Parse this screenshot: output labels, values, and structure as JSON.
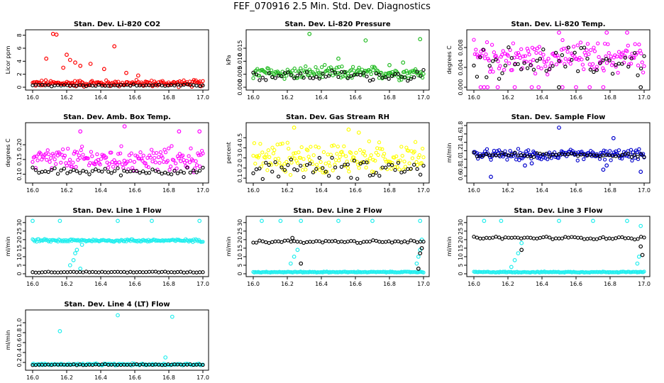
{
  "title": "FEF_070916  2.5 Min. Std. Dev. Diagnostics",
  "colors": {
    "co2": "#ff0000",
    "pressure": "#22bb22",
    "magenta": "#ff00ff",
    "yellow": "#ffff00",
    "blue": "#0000cc",
    "cyan": "#22eeee",
    "ref": "#000000"
  },
  "chart_data": [
    {
      "id": "co2",
      "type": "scatter",
      "title": "Stan. Dev. Li-820 CO2",
      "ylabel": "Licor ppm",
      "x_ticks": [
        "16.0",
        "16.2",
        "16.4",
        "16.6",
        "16.8",
        "17.0"
      ],
      "xlim": [
        16.0,
        17.0
      ],
      "y_ticks": [
        "0",
        "2",
        "4",
        "6",
        "8"
      ],
      "ylim": [
        0,
        8.4
      ],
      "series": [
        {
          "name": "main",
          "color": "#ff0000",
          "base": 0.6,
          "spread": 0.5,
          "points": [
            [
              16.12,
              8.2
            ],
            [
              16.14,
              8.1
            ],
            [
              16.2,
              5.0
            ],
            [
              16.22,
              4.2
            ],
            [
              16.25,
              3.8
            ],
            [
              16.28,
              3.3
            ],
            [
              16.34,
              3.6
            ],
            [
              16.48,
              6.3
            ],
            [
              16.08,
              4.4
            ],
            [
              16.18,
              3.0
            ],
            [
              16.42,
              2.8
            ],
            [
              16.55,
              2.2
            ],
            [
              16.62,
              1.8
            ]
          ]
        },
        {
          "name": "ref",
          "color": "#000000",
          "base": 0.3,
          "spread": 0.15,
          "points": []
        }
      ]
    },
    {
      "id": "pressure",
      "type": "scatter",
      "title": "Stan. Dev. Li-820 Pressure",
      "ylabel": "kPa",
      "x_ticks": [
        "16.0",
        "16.2",
        "16.4",
        "16.6",
        "16.8",
        "17.0"
      ],
      "xlim": [
        16.0,
        17.0
      ],
      "y_ticks": [
        "0.000",
        "0.005",
        "0.010",
        "0.015"
      ],
      "ylim": [
        0,
        0.021
      ],
      "series": [
        {
          "name": "main",
          "color": "#22bb22",
          "base": 0.0055,
          "spread": 0.0025,
          "points": [
            [
              16.33,
              0.0205
            ],
            [
              16.66,
              0.018
            ],
            [
              16.98,
              0.0185
            ],
            [
              16.5,
              0.011
            ],
            [
              16.88,
              0.0095
            ],
            [
              16.8,
              0.0085
            ]
          ]
        },
        {
          "name": "ref",
          "color": "#000000",
          "base": 0.0045,
          "spread": 0.002,
          "points": []
        }
      ]
    },
    {
      "id": "temp",
      "type": "scatter",
      "title": "Stan. Dev. Li-820 Temp.",
      "ylabel": "degrees C",
      "x_ticks": [
        "16.0",
        "16.2",
        "16.4",
        "16.6",
        "16.8",
        "17.0"
      ],
      "xlim": [
        16.0,
        17.0
      ],
      "y_ticks": [
        "0.000",
        "0.004",
        "0.008"
      ],
      "ylim": [
        0,
        0.011
      ],
      "series": [
        {
          "name": "main",
          "color": "#ff00ff",
          "base": 0.006,
          "spread": 0.003,
          "points": [
            [
              16.04,
              0.0
            ],
            [
              16.06,
              0.0
            ],
            [
              16.08,
              0.0
            ],
            [
              16.14,
              0.0
            ],
            [
              16.24,
              0.0
            ],
            [
              16.34,
              0.0
            ],
            [
              16.38,
              0.0
            ],
            [
              16.52,
              0.0
            ],
            [
              16.6,
              0.0
            ],
            [
              16.68,
              0.0
            ],
            [
              16.76,
              0.0
            ],
            [
              16.5,
              0.011
            ],
            [
              16.78,
              0.011
            ],
            [
              16.9,
              0.011
            ]
          ]
        },
        {
          "name": "ref",
          "color": "#000000",
          "base": 0.005,
          "spread": 0.003,
          "points": [
            [
              16.5,
              0.0
            ],
            [
              16.98,
              0.0
            ]
          ]
        }
      ]
    },
    {
      "id": "ambtemp",
      "type": "scatter",
      "title": "Stan. Dev. Amb. Box Temp.",
      "ylabel": "degrees C",
      "x_ticks": [
        "16.0",
        "16.2",
        "16.4",
        "16.6",
        "16.8",
        "17.0"
      ],
      "xlim": [
        16.0,
        17.0
      ],
      "y_ticks": [
        "0.10",
        "0.15",
        "0.20"
      ],
      "ylim": [
        0.08,
        0.265
      ],
      "series": [
        {
          "name": "main",
          "color": "#ff00ff",
          "base": 0.15,
          "spread": 0.04,
          "points": [
            [
              16.54,
              0.262
            ],
            [
              16.28,
              0.245
            ],
            [
              16.86,
              0.245
            ],
            [
              16.98,
              0.245
            ]
          ]
        },
        {
          "name": "ref",
          "color": "#000000",
          "base": 0.11,
          "spread": 0.012,
          "points": []
        }
      ]
    },
    {
      "id": "rh",
      "type": "scatter",
      "title": "Stan. Dev. Gas Stream RH",
      "ylabel": "percent",
      "x_ticks": [
        "16.0",
        "16.2",
        "16.4",
        "16.6",
        "16.8",
        "17.0"
      ],
      "xlim": [
        16.0,
        17.0
      ],
      "y_ticks": [
        "0.1",
        "0.2",
        "0.3",
        "0.4",
        "0.5"
      ],
      "ylim": [
        0.08,
        0.62
      ],
      "series": [
        {
          "name": "main",
          "color": "#ffff00",
          "base": 0.3,
          "spread": 0.15,
          "points": [
            [
              16.24,
              0.6
            ],
            [
              16.56,
              0.58
            ],
            [
              16.62,
              0.55
            ]
          ]
        },
        {
          "name": "ref",
          "color": "#000000",
          "base": 0.2,
          "spread": 0.1,
          "points": []
        }
      ]
    },
    {
      "id": "sampleflow",
      "type": "scatter",
      "title": "Stan. Dev. Sample Flow",
      "ylabel": "ml/min",
      "x_ticks": [
        "16.0",
        "16.2",
        "16.4",
        "16.6",
        "16.8",
        "17.0"
      ],
      "xlim": [
        16.0,
        17.0
      ],
      "y_ticks": [
        "0.6",
        "0.8",
        "1.0",
        "1.2",
        "1.4",
        "1.6",
        "1.8"
      ],
      "ylim": [
        0.5,
        1.8
      ],
      "series": [
        {
          "name": "main",
          "color": "#0000cc",
          "base": 1.1,
          "spread": 0.12,
          "points": [
            [
              16.5,
              1.75
            ],
            [
              16.82,
              1.5
            ],
            [
              16.1,
              0.58
            ],
            [
              16.98,
              0.7
            ],
            [
              16.76,
              0.75
            ],
            [
              16.78,
              0.85
            ],
            [
              16.3,
              0.85
            ],
            [
              16.34,
              0.9
            ]
          ]
        },
        {
          "name": "ref",
          "color": "#000000",
          "base": 1.1,
          "spread": 0.05,
          "points": []
        }
      ]
    },
    {
      "id": "line1",
      "type": "scatter",
      "title": "Stan. Dev. Line 1 Flow",
      "ylabel": "ml/min",
      "x_ticks": [
        "16.0",
        "16.2",
        "16.4",
        "16.6",
        "16.8",
        "17.0"
      ],
      "xlim": [
        16.0,
        17.0
      ],
      "y_ticks": [
        "0",
        "5",
        "10",
        "15",
        "20",
        "25",
        "30"
      ],
      "ylim": [
        0,
        32
      ],
      "series": [
        {
          "name": "main",
          "color": "#22eeee",
          "base": 19.5,
          "spread": 0.8,
          "points": [
            [
              16.0,
              31
            ],
            [
              16.16,
              31
            ],
            [
              16.5,
              31
            ],
            [
              16.7,
              31
            ],
            [
              16.98,
              31
            ],
            [
              16.22,
              5
            ],
            [
              16.24,
              8
            ],
            [
              16.25,
              12
            ],
            [
              16.26,
              14
            ],
            [
              16.28,
              3
            ],
            [
              16.29,
              17
            ]
          ]
        },
        {
          "name": "ref",
          "color": "#000000",
          "base": 1.0,
          "spread": 0.3,
          "points": []
        }
      ]
    },
    {
      "id": "line2",
      "type": "scatter",
      "title": "Stan. Dev. Line 2 Flow",
      "ylabel": "ml/min",
      "x_ticks": [
        "16.0",
        "16.2",
        "16.4",
        "16.6",
        "16.8",
        "17.0"
      ],
      "xlim": [
        16.0,
        17.0
      ],
      "y_ticks": [
        "0",
        "5",
        "10",
        "15",
        "20",
        "25",
        "30"
      ],
      "ylim": [
        0,
        32
      ],
      "series": [
        {
          "name": "main",
          "color": "#22eeee",
          "base": 1.0,
          "spread": 0.3,
          "points": [
            [
              16.05,
              31
            ],
            [
              16.16,
              31
            ],
            [
              16.28,
              31
            ],
            [
              16.5,
              31
            ],
            [
              16.7,
              31
            ],
            [
              16.98,
              31
            ],
            [
              16.22,
              6
            ],
            [
              16.24,
              10
            ],
            [
              16.26,
              14
            ],
            [
              16.96,
              6
            ],
            [
              16.97,
              10
            ],
            [
              16.98,
              14
            ],
            [
              16.99,
              20
            ]
          ]
        },
        {
          "name": "ref",
          "color": "#000000",
          "base": 18.8,
          "spread": 0.8,
          "points": [
            [
              16.23,
              21
            ],
            [
              16.28,
              6
            ],
            [
              16.97,
              3
            ],
            [
              16.98,
              12
            ],
            [
              16.99,
              15
            ]
          ]
        }
      ]
    },
    {
      "id": "line3",
      "type": "scatter",
      "title": "Stan. Dev. Line 3 Flow",
      "ylabel": "ml/min",
      "x_ticks": [
        "16.0",
        "16.2",
        "16.4",
        "16.6",
        "16.8",
        "17.0"
      ],
      "xlim": [
        16.0,
        17.0
      ],
      "y_ticks": [
        "0",
        "5",
        "10",
        "15",
        "20",
        "25",
        "30"
      ],
      "ylim": [
        0,
        32
      ],
      "series": [
        {
          "name": "main",
          "color": "#22eeee",
          "base": 1.0,
          "spread": 0.3,
          "points": [
            [
              16.06,
              31
            ],
            [
              16.16,
              31
            ],
            [
              16.5,
              31
            ],
            [
              16.7,
              31
            ],
            [
              16.9,
              31
            ],
            [
              16.22,
              4
            ],
            [
              16.24,
              8
            ],
            [
              16.26,
              12
            ],
            [
              16.28,
              18
            ],
            [
              16.96,
              6
            ],
            [
              16.97,
              10
            ],
            [
              16.98,
              28
            ]
          ]
        },
        {
          "name": "ref",
          "color": "#000000",
          "base": 21.0,
          "spread": 0.8,
          "points": [
            [
              16.28,
              14
            ],
            [
              16.98,
              16
            ],
            [
              16.99,
              11
            ]
          ]
        }
      ]
    },
    {
      "id": "line4",
      "type": "scatter",
      "title": "Stan. Dev. Line 4 (LT) Flow",
      "ylabel": "ml/min",
      "x_ticks": [
        "16.0",
        "16.2",
        "16.4",
        "16.6",
        "16.8",
        "17.0"
      ],
      "xlim": [
        16.0,
        17.0
      ],
      "y_ticks": [
        "0.2",
        "0.4",
        "0.6",
        "0.8",
        "1.0"
      ],
      "ylim": [
        0.1,
        1.2
      ],
      "series": [
        {
          "name": "main",
          "color": "#22eeee",
          "base": 0.16,
          "spread": 0.02,
          "points": [
            [
              16.16,
              0.83
            ],
            [
              16.5,
              1.15
            ],
            [
              16.82,
              1.12
            ],
            [
              16.78,
              0.3
            ]
          ]
        },
        {
          "name": "ref",
          "color": "#000000",
          "base": 0.155,
          "spread": 0.01,
          "points": []
        }
      ]
    }
  ]
}
